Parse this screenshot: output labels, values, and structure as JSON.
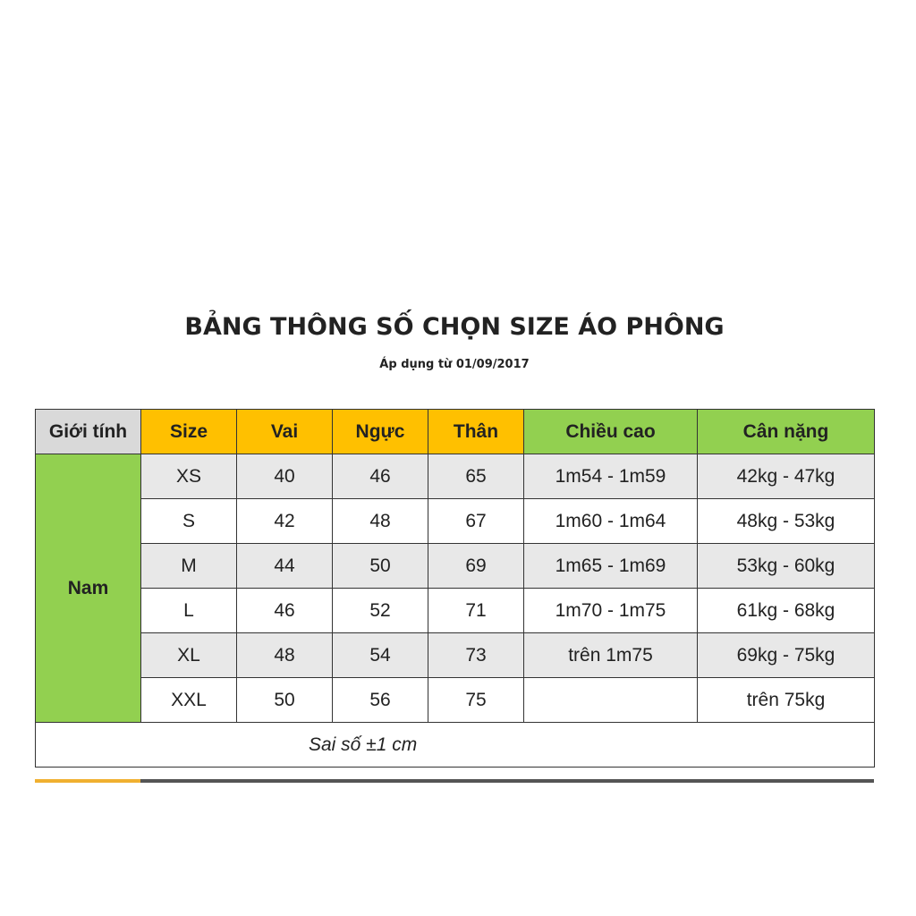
{
  "title": "BẢNG THÔNG SỐ CHỌN SIZE ÁO PHÔNG",
  "subtitle": "Áp dụng từ 01/09/2017",
  "headers": [
    "Giới tính",
    "Size",
    "Vai",
    "Ngực",
    "Thân",
    "Chiều cao",
    "Cân nặng"
  ],
  "gender": "Nam",
  "rows": [
    [
      "XS",
      "40",
      "46",
      "65",
      "1m54 - 1m59",
      "42kg - 47kg"
    ],
    [
      "S",
      "42",
      "48",
      "67",
      "1m60 - 1m64",
      "48kg - 53kg"
    ],
    [
      "M",
      "44",
      "50",
      "69",
      "1m65 - 1m69",
      "53kg - 60kg"
    ],
    [
      "L",
      "46",
      "52",
      "71",
      "1m70 - 1m75",
      "61kg - 68kg"
    ],
    [
      "XL",
      "48",
      "54",
      "73",
      "trên 1m75",
      "69kg - 75kg"
    ],
    [
      "XXL",
      "50",
      "56",
      "75",
      "",
      "trên 75kg"
    ]
  ],
  "note": "Sai số ±1 cm",
  "colors": {
    "header_gray": "#d9d9d9",
    "header_orange": "#ffc000",
    "header_green": "#92d050"
  }
}
